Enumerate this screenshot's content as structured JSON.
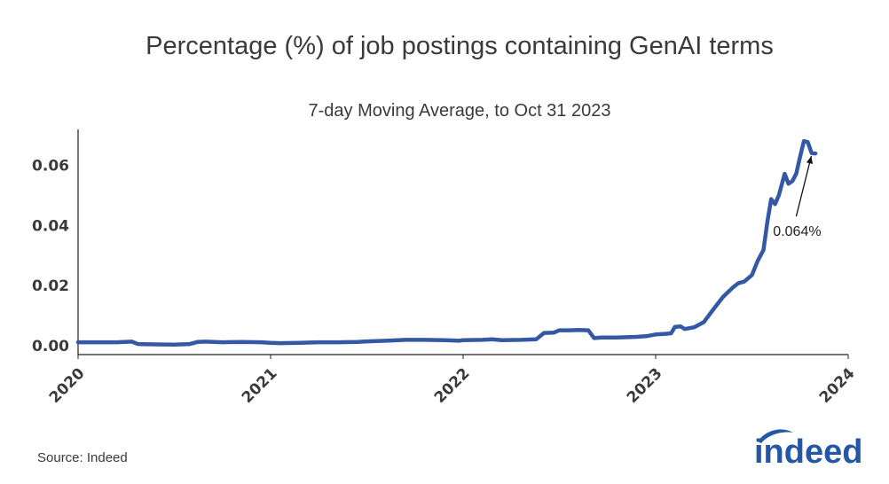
{
  "chart_data": {
    "type": "line",
    "title": "Percentage (%) of job postings containing GenAI terms",
    "subtitle": "7-day Moving Average, to Oct 31 2023",
    "xlabel": "",
    "ylabel": "",
    "x_ticks": [
      "2020",
      "2021",
      "2022",
      "2023",
      "2024"
    ],
    "y_ticks": [
      "0.00",
      "0.02",
      "0.04",
      "0.06"
    ],
    "xlim": [
      2020.0,
      2024.0
    ],
    "ylim": [
      -0.003,
      0.072
    ],
    "grid": false,
    "line_color": "#3558a5",
    "series": [
      {
        "x": [
          2020.0,
          2020.1,
          2020.2,
          2020.28,
          2020.31,
          2020.4,
          2020.5,
          2020.58,
          2020.62,
          2020.66,
          2020.75,
          2020.85,
          2020.95,
          2021.0,
          2021.05,
          2021.15,
          2021.25,
          2021.35,
          2021.45,
          2021.5,
          2021.6,
          2021.7,
          2021.8,
          2021.9,
          2021.98,
          2022.0,
          2022.1,
          2022.15,
          2022.2,
          2022.3,
          2022.38,
          2022.42,
          2022.47,
          2022.5,
          2022.55,
          2022.6,
          2022.65,
          2022.68,
          2022.72,
          2022.8,
          2022.9,
          2022.95,
          2023.0,
          2023.05,
          2023.08,
          2023.1,
          2023.13,
          2023.15,
          2023.2,
          2023.25,
          2023.3,
          2023.35,
          2023.4,
          2023.43,
          2023.46,
          2023.5,
          2023.53,
          2023.56,
          2023.58,
          2023.6,
          2023.62,
          2023.64,
          2023.67,
          2023.69,
          2023.71,
          2023.73,
          2023.75,
          2023.77,
          2023.79,
          2023.81,
          2023.83
        ],
        "y": [
          0.0011,
          0.0011,
          0.0011,
          0.0013,
          0.0005,
          0.0004,
          0.0003,
          0.0005,
          0.0012,
          0.0013,
          0.0011,
          0.0012,
          0.0011,
          0.0009,
          0.0008,
          0.0009,
          0.0011,
          0.0011,
          0.0012,
          0.0014,
          0.0016,
          0.0019,
          0.0019,
          0.0018,
          0.0016,
          0.0018,
          0.0019,
          0.0021,
          0.0018,
          0.0019,
          0.0021,
          0.0042,
          0.0043,
          0.0051,
          0.0051,
          0.0052,
          0.0051,
          0.0025,
          0.0027,
          0.0027,
          0.0029,
          0.0031,
          0.0037,
          0.0039,
          0.0041,
          0.0062,
          0.0064,
          0.0055,
          0.0061,
          0.0078,
          0.0121,
          0.0162,
          0.0193,
          0.0208,
          0.0213,
          0.0235,
          0.0282,
          0.0318,
          0.0412,
          0.0488,
          0.0471,
          0.0501,
          0.0572,
          0.0539,
          0.0548,
          0.0572,
          0.0629,
          0.0681,
          0.0678,
          0.0641,
          0.064
        ]
      }
    ],
    "annotation": {
      "text": "0.064%",
      "x": 2023.79,
      "y": 0.064
    }
  },
  "source": "Source: Indeed",
  "logo": {
    "icon": "indeed-logo-icon",
    "text": "indeed",
    "color": "#2557a7"
  }
}
